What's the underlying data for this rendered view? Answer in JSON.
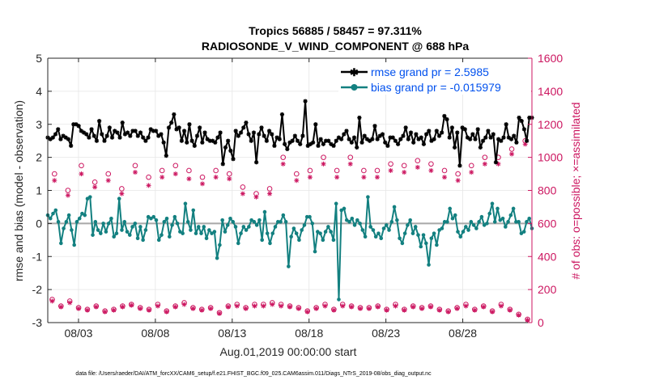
{
  "chart_data": {
    "type": "line",
    "title": "Tropics 56885 / 58457 = 97.311%",
    "subtitle": "RADIOSONDE_V_WIND_COMPONENT @ 688 hPa",
    "xlabel": "Aug.01,2019 00:00:00 start",
    "ylabel_left": "rmse and bias (model - observation)",
    "ylabel_right": "# of obs: o=possible; ×=assimilated",
    "xlim": [
      1,
      32.5
    ],
    "ylim_left": [
      -3,
      5
    ],
    "ylim_right": [
      0,
      1600
    ],
    "x_ticks": [
      3,
      8,
      13,
      18,
      23,
      28
    ],
    "x_tick_labels": [
      "08/03",
      "08/08",
      "08/13",
      "08/18",
      "08/23",
      "08/28"
    ],
    "y_ticks_left": [
      -3,
      -2,
      -1,
      0,
      1,
      2,
      3,
      4,
      5
    ],
    "y_ticks_right": [
      0,
      200,
      400,
      600,
      800,
      1000,
      1200,
      1400,
      1600
    ],
    "grid": true,
    "legend_position": "top-right",
    "series": [
      {
        "name": "rmse grand pr = 2.5985",
        "color": "#000000",
        "marker": "star",
        "axis": "left",
        "values": [
          2.6,
          2.55,
          2.6,
          2.7,
          2.85,
          2.55,
          2.65,
          2.6,
          2.55,
          2.35,
          3.0,
          3.0,
          2.95,
          2.8,
          2.75,
          2.7,
          2.6,
          2.85,
          2.65,
          2.5,
          3.1,
          2.7,
          2.5,
          2.65,
          2.9,
          2.6,
          2.8,
          2.75,
          2.6,
          3.05,
          2.7,
          2.75,
          2.65,
          2.8,
          2.8,
          2.65,
          2.75,
          2.6,
          2.5,
          2.6,
          2.85,
          2.8,
          2.8,
          2.65,
          2.7,
          2.45,
          2.05,
          2.9,
          3.05,
          3.3,
          2.85,
          2.9,
          2.5,
          2.8,
          2.45,
          3.0,
          2.5,
          2.35,
          2.65,
          2.9,
          2.45,
          2.75,
          2.55,
          2.5,
          2.5,
          2.45,
          2.6,
          2.75,
          1.8,
          2.3,
          2.5,
          2.2,
          1.95,
          2.8,
          2.65,
          2.75,
          2.9,
          3.05,
          2.7,
          2.5,
          2.75,
          1.85,
          2.7,
          2.9,
          2.65,
          2.5,
          2.8,
          2.7,
          2.35,
          2.6,
          2.55,
          3.3,
          2.4,
          2.25,
          2.45,
          2.5,
          2.65,
          2.5,
          2.4,
          2.65,
          3.7,
          2.35,
          2.4,
          2.45,
          3.0,
          2.35,
          2.55,
          2.4,
          2.5,
          2.5,
          2.4,
          2.35,
          2.5,
          2.6,
          2.55,
          2.7,
          2.8,
          2.55,
          2.45,
          2.6,
          2.3,
          3.2,
          2.45,
          2.65,
          2.55,
          2.5,
          2.55,
          2.95,
          2.55,
          2.65,
          2.7,
          2.45,
          2.35,
          2.6,
          2.6,
          2.5,
          2.4,
          2.55,
          2.65,
          2.9,
          2.55,
          2.75,
          2.45,
          2.7,
          2.55,
          2.6,
          2.4,
          2.7,
          2.8,
          2.5,
          2.55,
          2.8,
          2.65,
          2.75,
          3.25,
          3.15,
          2.6,
          2.9,
          2.3,
          2.75,
          1.75,
          2.9,
          2.85,
          2.6,
          2.55,
          2.7,
          2.55,
          2.85,
          2.3,
          2.5,
          2.6,
          2.8,
          2.6,
          2.7,
          1.85,
          2.55,
          2.5,
          2.6,
          3.0,
          2.6,
          2.55,
          2.65,
          2.45,
          3.2,
          3.1,
          2.85,
          2.5,
          3.2,
          3.2
        ]
      },
      {
        "name": "bias grand pr = -0.015979",
        "color": "#138080",
        "marker": "dot",
        "axis": "left",
        "values": [
          0.25,
          0.15,
          0.3,
          0.4,
          0.05,
          -0.6,
          -0.15,
          0.05,
          0.25,
          -0.2,
          -0.65,
          0.05,
          0.15,
          0.3,
          0.25,
          0.75,
          0.8,
          -0.35,
          0.05,
          -0.2,
          -0.3,
          0.0,
          -0.25,
          0.0,
          0.15,
          -0.4,
          -0.3,
          0.75,
          -0.2,
          0.05,
          -0.25,
          -0.35,
          -0.1,
          0.0,
          -0.45,
          -0.1,
          -0.5,
          -0.2,
          0.2,
          0.15,
          0.2,
          0.1,
          -0.5,
          -0.35,
          0.05,
          0.15,
          -0.4,
          -0.05,
          0.2,
          0.0,
          -0.25,
          -0.3,
          0.6,
          0.05,
          -0.2,
          0.4,
          -0.3,
          -0.1,
          -0.3,
          -0.1,
          -0.45,
          -0.2,
          -0.3,
          -0.25,
          -1.05,
          -0.65,
          0.1,
          -0.25,
          -0.05,
          0.15,
          0.05,
          -0.1,
          -0.6,
          -0.3,
          -0.1,
          -0.2,
          -0.1,
          0.1,
          0.05,
          -0.05,
          0.1,
          -0.5,
          0.35,
          -0.3,
          -0.6,
          -0.3,
          -0.1,
          0.05,
          0.05,
          0.25,
          0.05,
          -1.3,
          -0.4,
          -0.15,
          -0.3,
          -0.5,
          -0.2,
          -0.05,
          0.2,
          0.2,
          0.0,
          -0.85,
          -0.25,
          -0.3,
          -0.5,
          -0.25,
          -0.1,
          -0.25,
          -0.5,
          0.6,
          -2.3,
          0.4,
          0.45,
          0.1,
          0.05,
          0.15,
          -0.05,
          0.1,
          0.0,
          -0.2,
          -0.4,
          0.8,
          -0.1,
          -0.2,
          -0.4,
          -0.3,
          -0.45,
          -0.15,
          -0.05,
          -0.2,
          0.05,
          0.5,
          0.1,
          -0.45,
          -0.6,
          -0.3,
          -0.05,
          0.1,
          -0.3,
          -0.1,
          -0.35,
          -0.7,
          -0.35,
          -0.6,
          -1.25,
          -0.45,
          -0.3,
          -0.65,
          -0.2,
          -0.15,
          0.05,
          0.05,
          0.45,
          0.15,
          0.25,
          -0.25,
          -0.4,
          -0.25,
          -0.1,
          -0.2,
          0.05,
          -0.05,
          -0.15,
          0.05,
          0.2,
          -0.05,
          0.0,
          0.3,
          0.6,
          0.05,
          0.45,
          0.1,
          0.15,
          -0.1,
          0.05,
          0.25,
          0.45,
          0.05,
          0.05,
          -0.3,
          -0.25,
          0.05,
          0.15,
          -0.15
        ]
      },
      {
        "name": "possible (large counts)",
        "color": "#cc1660",
        "marker": "circle",
        "axis": "right",
        "values": [
          900,
          800,
          950,
          850,
          900,
          810,
          950,
          880,
          920,
          950,
          920,
          880,
          920,
          900,
          820,
          780,
          810,
          1000,
          900,
          920,
          1000,
          920,
          1000,
          920,
          920,
          960,
          950,
          980,
          960,
          920,
          900,
          950,
          1000,
          1000,
          1050,
          1100
        ]
      },
      {
        "name": "assimilated (large counts)",
        "color": "#cc1660",
        "marker": "asterisk",
        "axis": "right",
        "values": [
          860,
          770,
          900,
          820,
          860,
          780,
          910,
          830,
          880,
          900,
          870,
          840,
          880,
          870,
          780,
          760,
          780,
          960,
          860,
          880,
          960,
          880,
          960,
          880,
          880,
          920,
          910,
          940,
          920,
          880,
          860,
          910,
          960,
          960,
          1020,
          1080
        ]
      },
      {
        "name": "possible (small counts)",
        "color": "#cc1660",
        "marker": "circle",
        "axis": "right",
        "values": [
          140,
          100,
          130,
          90,
          80,
          100,
          70,
          80,
          100,
          110,
          90,
          80,
          110,
          70,
          100,
          120,
          90,
          80,
          90,
          60,
          100,
          110,
          90,
          110,
          110,
          120,
          110,
          100,
          90,
          70,
          90,
          110,
          80,
          110,
          100,
          90,
          90,
          100,
          80,
          110,
          80,
          100,
          90,
          100,
          80,
          70,
          90,
          110,
          80,
          100,
          70,
          110,
          80,
          50,
          20
        ]
      },
      {
        "name": "assimilated (small counts)",
        "color": "#cc1660",
        "marker": "asterisk",
        "axis": "right",
        "values": [
          130,
          95,
          120,
          85,
          75,
          95,
          65,
          75,
          95,
          105,
          85,
          75,
          100,
          65,
          95,
          110,
          85,
          75,
          85,
          55,
          95,
          100,
          85,
          100,
          100,
          110,
          100,
          95,
          85,
          65,
          85,
          100,
          75,
          100,
          95,
          85,
          85,
          95,
          75,
          100,
          75,
          95,
          85,
          95,
          75,
          65,
          85,
          100,
          75,
          95,
          65,
          100,
          75,
          45,
          15
        ]
      }
    ],
    "legend": [
      {
        "label": "rmse grand pr = 2.5985",
        "color": "#0050ee"
      },
      {
        "label": "bias grand pr = -0.015979",
        "color": "#0050ee"
      }
    ],
    "footnote": "data file: /Users/raeder/DAI/ATM_forcXX/CAM6_setup/f.e21.FHIST_BGC.f09_025.CAM6assim.011/Diags_NTrS_2019-08/obs_diag_output.nc"
  }
}
